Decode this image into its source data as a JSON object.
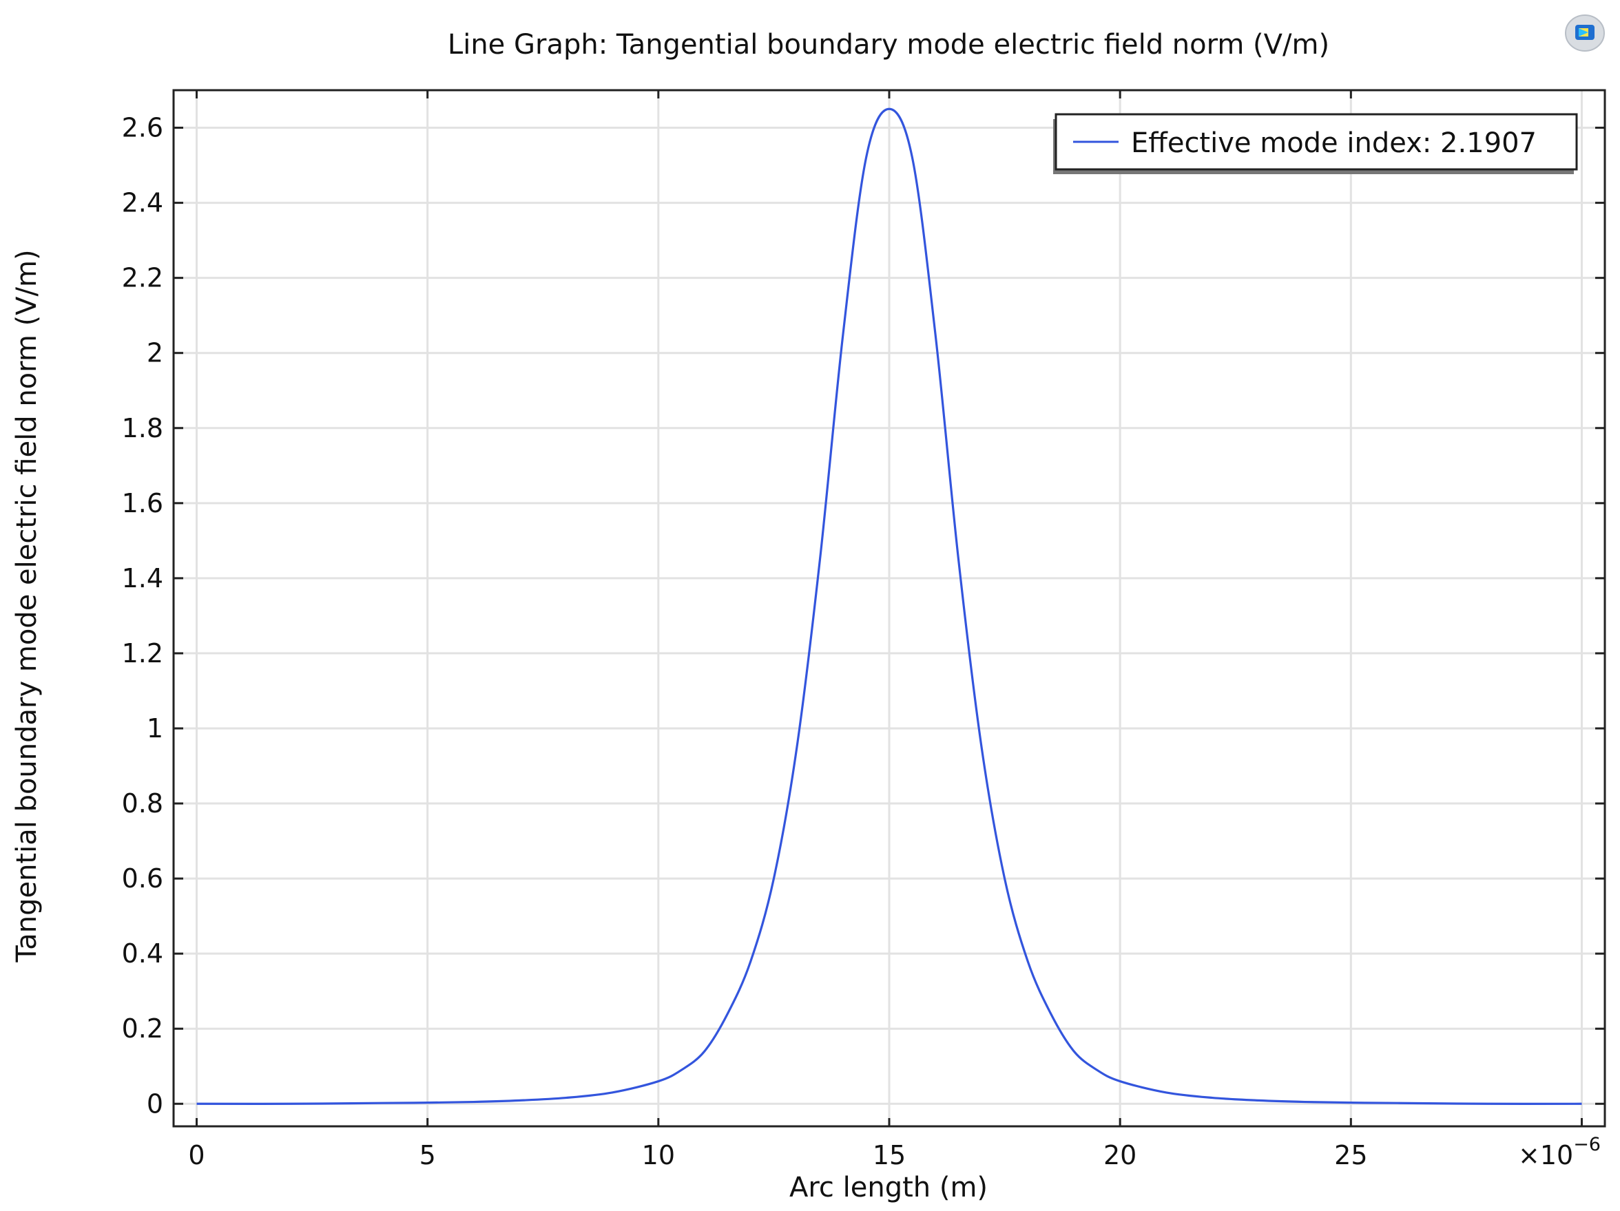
{
  "chart_data": {
    "type": "line",
    "title": "Line Graph: Tangential boundary mode electric field norm (V/m)",
    "xlabel": "Arc length (m)",
    "ylabel": "Tangential boundary mode electric field norm (V/m)",
    "x_multiplier": "×10",
    "x_multiplier_exponent": "−6",
    "xlim": [
      -0.5,
      30.5
    ],
    "ylim": [
      -0.06,
      2.7
    ],
    "x_ticks": [
      0,
      5,
      10,
      15,
      20,
      25
    ],
    "x_tick_labels": [
      "0",
      "5",
      "10",
      "15",
      "20",
      "25"
    ],
    "y_ticks": [
      0,
      0.2,
      0.4,
      0.6,
      0.8,
      1,
      1.2,
      1.4,
      1.6,
      1.8,
      2,
      2.2,
      2.4,
      2.6
    ],
    "y_tick_labels": [
      "0",
      "0.2",
      "0.4",
      "0.6",
      "0.8",
      "1",
      "1.2",
      "1.4",
      "1.6",
      "1.8",
      "2",
      "2.2",
      "2.4",
      "2.6"
    ],
    "grid": true,
    "legend_position": "top-right",
    "series": [
      {
        "name": "Effective mode index: 2.1907",
        "color": "#3355dd",
        "x": [
          0,
          2,
          4,
          5,
          6,
          7,
          8,
          9,
          10,
          10.5,
          11,
          11.5,
          12,
          12.5,
          13,
          13.5,
          14,
          14.5,
          15,
          15.5,
          16,
          16.5,
          17,
          17.5,
          18,
          18.5,
          19,
          19.5,
          20,
          21,
          22,
          23,
          24,
          25,
          26,
          28,
          30
        ],
        "y": [
          0.0,
          0.0,
          0.002,
          0.003,
          0.005,
          0.009,
          0.016,
          0.03,
          0.06,
          0.09,
          0.14,
          0.24,
          0.38,
          0.6,
          0.95,
          1.45,
          2.05,
          2.52,
          2.65,
          2.52,
          2.05,
          1.45,
          0.95,
          0.6,
          0.38,
          0.24,
          0.14,
          0.09,
          0.06,
          0.03,
          0.016,
          0.009,
          0.005,
          0.003,
          0.002,
          0.0,
          0.0
        ]
      }
    ]
  }
}
